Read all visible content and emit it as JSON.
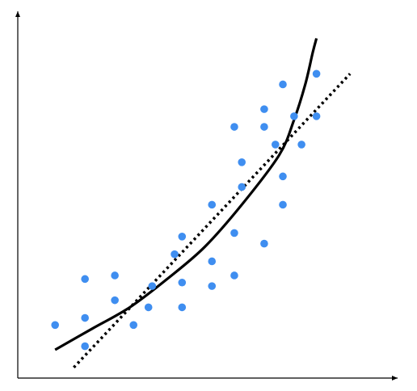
{
  "chart_data": {
    "type": "scatter",
    "title": "",
    "xlabel": "",
    "ylabel": "",
    "grid": false,
    "xlim": [
      0,
      10
    ],
    "ylim": [
      0,
      10
    ],
    "colors": {
      "points": "#3f8ef0",
      "curve": "#000000",
      "trend": "#000000",
      "axes": "#000000"
    },
    "points": [
      {
        "x": 1.0,
        "y": 1.5
      },
      {
        "x": 1.8,
        "y": 2.8
      },
      {
        "x": 1.8,
        "y": 1.7
      },
      {
        "x": 1.8,
        "y": 0.9
      },
      {
        "x": 2.6,
        "y": 2.9
      },
      {
        "x": 2.6,
        "y": 2.2
      },
      {
        "x": 3.1,
        "y": 1.5
      },
      {
        "x": 3.5,
        "y": 2.0
      },
      {
        "x": 3.6,
        "y": 2.6
      },
      {
        "x": 4.2,
        "y": 3.5
      },
      {
        "x": 4.4,
        "y": 4.0
      },
      {
        "x": 4.4,
        "y": 2.7
      },
      {
        "x": 4.4,
        "y": 2.0
      },
      {
        "x": 5.2,
        "y": 4.9
      },
      {
        "x": 5.2,
        "y": 3.3
      },
      {
        "x": 5.2,
        "y": 2.6
      },
      {
        "x": 5.8,
        "y": 7.1
      },
      {
        "x": 5.8,
        "y": 4.1
      },
      {
        "x": 5.8,
        "y": 2.9
      },
      {
        "x": 6.0,
        "y": 6.1
      },
      {
        "x": 6.0,
        "y": 5.4
      },
      {
        "x": 6.6,
        "y": 7.6
      },
      {
        "x": 6.6,
        "y": 7.1
      },
      {
        "x": 6.6,
        "y": 3.8
      },
      {
        "x": 6.9,
        "y": 6.6
      },
      {
        "x": 7.1,
        "y": 8.3
      },
      {
        "x": 7.1,
        "y": 5.7
      },
      {
        "x": 7.1,
        "y": 4.9
      },
      {
        "x": 7.4,
        "y": 7.4
      },
      {
        "x": 7.6,
        "y": 6.6
      },
      {
        "x": 8.0,
        "y": 8.6
      },
      {
        "x": 8.0,
        "y": 7.4
      }
    ],
    "curve": [
      {
        "x": 1.0,
        "y": 0.8
      },
      {
        "x": 2.0,
        "y": 1.4
      },
      {
        "x": 3.0,
        "y": 2.0
      },
      {
        "x": 4.0,
        "y": 2.8
      },
      {
        "x": 5.0,
        "y": 3.7
      },
      {
        "x": 6.0,
        "y": 4.9
      },
      {
        "x": 7.0,
        "y": 6.3
      },
      {
        "x": 7.4,
        "y": 7.3
      },
      {
        "x": 7.7,
        "y": 8.3
      },
      {
        "x": 7.9,
        "y": 9.2
      },
      {
        "x": 8.0,
        "y": 9.6
      }
    ],
    "trend": [
      {
        "x": 1.5,
        "y": 0.3
      },
      {
        "x": 8.9,
        "y": 8.6
      }
    ]
  }
}
